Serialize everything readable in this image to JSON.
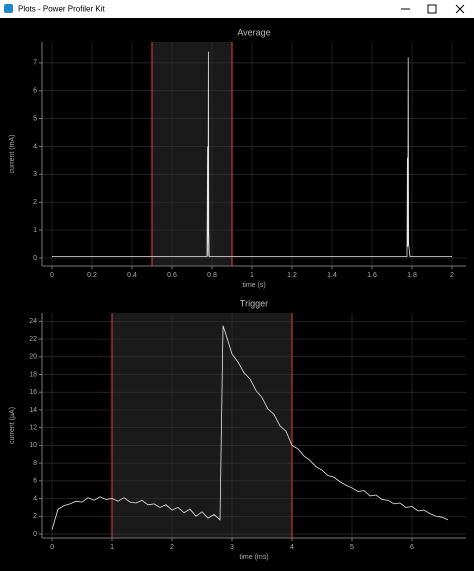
{
  "window": {
    "title": "Plots - Power Profiler Kit"
  },
  "chart_data": [
    {
      "type": "line",
      "title": "Average",
      "xlabel": "time (s)",
      "ylabel": "current (mA)",
      "x": [
        0,
        0.775,
        0.778,
        0.78,
        0.782,
        0.784,
        0.786,
        1.775,
        1.777,
        1.779,
        1.781,
        1.783,
        1.79,
        2
      ],
      "values": [
        0.05,
        0.05,
        4.0,
        0.05,
        7.4,
        0.9,
        0.05,
        0.05,
        3.6,
        0.4,
        7.2,
        0.5,
        0.05,
        0.05
      ],
      "color": "#e6e6e6",
      "xlim": [
        -0.05,
        2.07
      ],
      "ylim": [
        -0.29,
        7.75
      ],
      "xticks": [
        0,
        0.2,
        0.4,
        0.6,
        0.8,
        1,
        1.2,
        1.4,
        1.6,
        1.8,
        2
      ],
      "yticks": [
        0,
        1,
        2,
        3,
        4,
        5,
        6,
        7
      ],
      "grid": true,
      "selection": [
        0.5,
        0.9
      ],
      "selection_color": "#b8312f"
    },
    {
      "type": "line",
      "title": "Trigger",
      "xlabel": "time (ms)",
      "ylabel": "current (µA)",
      "x": [
        0,
        0.1,
        0.2,
        0.3,
        0.4,
        0.5,
        0.6,
        0.7,
        0.8,
        0.9,
        1.0,
        1.1,
        1.2,
        1.3,
        1.4,
        1.5,
        1.6,
        1.7,
        1.8,
        1.9,
        2.0,
        2.1,
        2.2,
        2.3,
        2.4,
        2.5,
        2.6,
        2.7,
        2.8,
        2.85,
        2.9,
        3.0,
        3.1,
        3.2,
        3.3,
        3.4,
        3.5,
        3.6,
        3.7,
        3.8,
        3.9,
        4.0,
        4.1,
        4.2,
        4.3,
        4.4,
        4.5,
        4.6,
        4.7,
        4.8,
        4.9,
        5.0,
        5.1,
        5.2,
        5.3,
        5.4,
        5.5,
        5.6,
        5.7,
        5.8,
        5.9,
        6.0,
        6.1,
        6.2,
        6.3,
        6.4,
        6.5,
        6.6
      ],
      "values": [
        0.5,
        2.8,
        3.2,
        3.4,
        3.7,
        3.6,
        4.1,
        3.8,
        4.2,
        3.9,
        4.0,
        3.7,
        4.1,
        3.6,
        3.5,
        3.8,
        3.3,
        3.4,
        3.0,
        3.3,
        2.7,
        3.0,
        2.4,
        2.8,
        2.0,
        2.5,
        1.8,
        2.2,
        1.6,
        23.5,
        22.5,
        20.3,
        19.4,
        18.2,
        17.5,
        16.2,
        15.4,
        14.1,
        13.5,
        12.2,
        11.6,
        10.0,
        9.6,
        8.8,
        8.3,
        7.6,
        7.2,
        6.6,
        6.4,
        5.9,
        5.5,
        5.2,
        4.8,
        4.9,
        4.3,
        4.4,
        3.9,
        3.8,
        3.4,
        3.5,
        3.0,
        3.1,
        2.6,
        2.7,
        2.3,
        2.0,
        1.9,
        1.6
      ],
      "color": "#e6e6e6",
      "xlim": [
        -0.167,
        6.9
      ],
      "ylim": [
        -0.45,
        24.94
      ],
      "xticks": [
        0,
        1,
        2,
        3,
        4,
        5,
        6
      ],
      "yticks": [
        0,
        2,
        4,
        6,
        8,
        10,
        12,
        14,
        16,
        18,
        20,
        22,
        24
      ],
      "grid": true,
      "selection": [
        1,
        4
      ],
      "selection_color": "#b8312f"
    }
  ]
}
